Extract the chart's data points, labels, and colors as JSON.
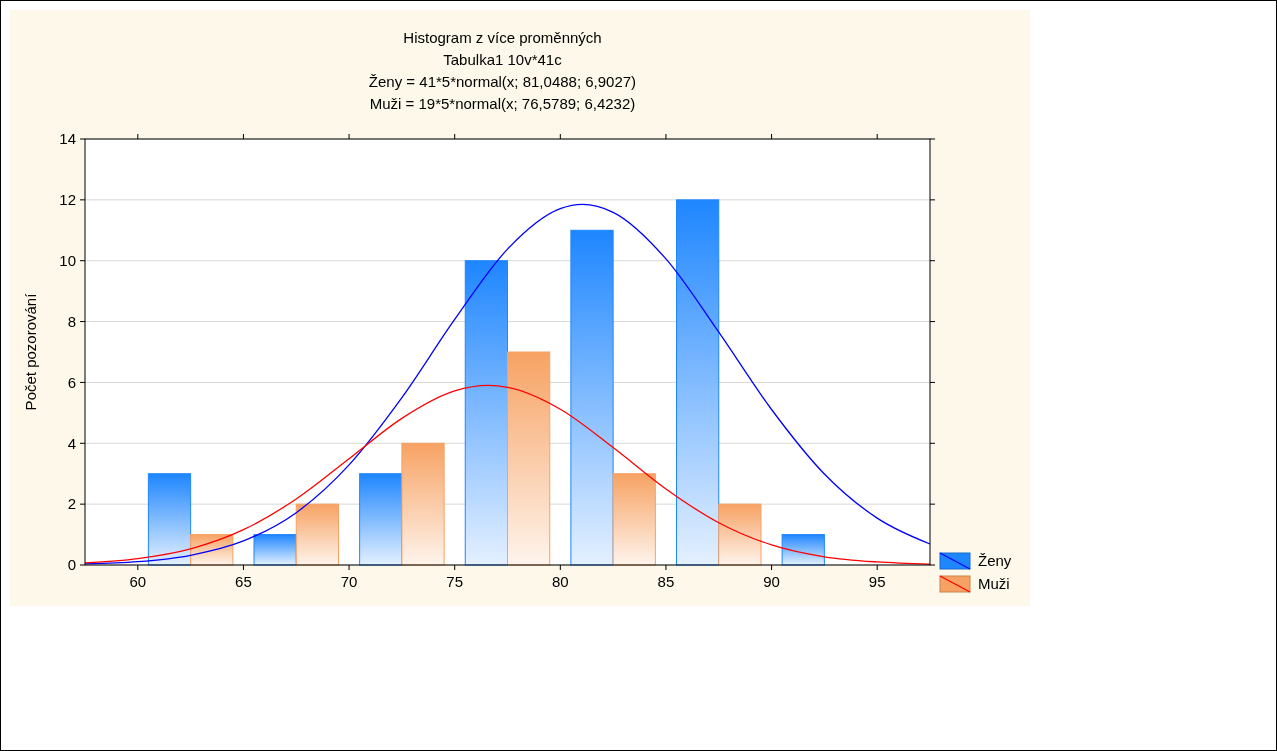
{
  "chart_data": {
    "type": "bar",
    "title": "Histogram z více proměnných",
    "subtitle": "Tabulka1 10v*41c",
    "annotations": [
      "Ženy = 41*5*normal(x; 81,0488; 6,9027)",
      "Muži = 19*5*normal(x; 76,5789; 6,4232)"
    ],
    "ylabel": "Počet pozorování",
    "x": [
      62.5,
      67.5,
      72.5,
      77.5,
      82.5,
      87.5,
      92.5
    ],
    "series": [
      {
        "name": "Ženy",
        "color": "#1e86ff",
        "values": [
          3,
          1,
          3,
          10,
          11,
          12,
          1
        ]
      },
      {
        "name": "Muži",
        "color": "#f7a263",
        "values": [
          1,
          2,
          4,
          7,
          3,
          2,
          0
        ]
      },
      {
        "type": "line",
        "color": "#0000ff",
        "x": [
          57.5,
          60,
          62.5,
          65,
          67.5,
          70,
          72.5,
          75,
          77.5,
          80,
          81.05,
          82.5,
          85,
          87.5,
          90,
          92.5,
          95,
          97.5
        ],
        "values": [
          0.04,
          0.11,
          0.32,
          0.79,
          1.72,
          3.29,
          5.5,
          8.07,
          10.38,
          11.71,
          11.85,
          11.59,
          10.06,
          7.65,
          5.11,
          2.99,
          1.54,
          0.69
        ]
      },
      {
        "type": "line",
        "color": "#ff0000",
        "x": [
          57.5,
          60,
          62.5,
          65,
          67.5,
          70,
          72.5,
          75,
          76.58,
          77.5,
          80,
          82.5,
          85,
          87.5,
          90,
          92.5,
          95,
          97.5
        ],
        "values": [
          0.07,
          0.21,
          0.53,
          1.16,
          2.17,
          3.49,
          4.82,
          5.72,
          5.9,
          5.84,
          5.12,
          3.86,
          2.5,
          1.39,
          0.66,
          0.27,
          0.1,
          0.03
        ]
      }
    ],
    "xlim": [
      57.5,
      97.5
    ],
    "xticks": [
      60,
      65,
      70,
      75,
      80,
      85,
      90,
      95
    ],
    "ylim": [
      0,
      14
    ],
    "yticks": [
      0,
      2,
      4,
      6,
      8,
      10,
      12,
      14
    ],
    "grid": "y",
    "legend": "right"
  }
}
